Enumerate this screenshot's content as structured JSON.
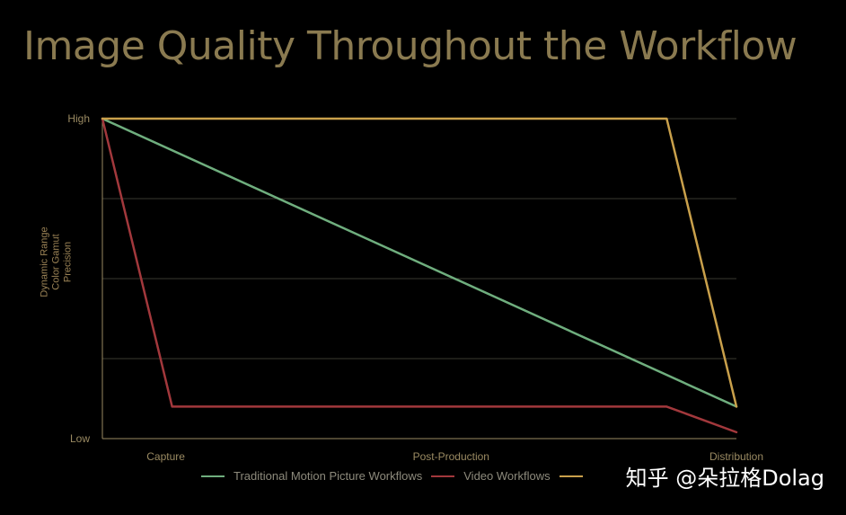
{
  "title": "Image Quality Throughout the Workflow",
  "ylabel_lines": [
    "Dynamic Range",
    "Color Gamut",
    "Precision"
  ],
  "chart_data": {
    "type": "line",
    "title": "Image Quality Throughout the Workflow",
    "ylabel": "Dynamic Range / Color Gamut / Precision",
    "xlabel": "",
    "x_tick_labels": [
      "Capture",
      "Post-Production",
      "Distribution"
    ],
    "y_tick_labels": [
      "High",
      "Low"
    ],
    "grid": "horizontal",
    "xlim": [
      0,
      1
    ],
    "ylim": [
      0,
      1
    ],
    "series": [
      {
        "name": "Traditional Motion Picture Workflows",
        "color": "#6fae7e",
        "points": [
          [
            0,
            1
          ],
          [
            1,
            0.1
          ]
        ]
      },
      {
        "name": "Video Workflows",
        "color": "#a2383c",
        "points": [
          [
            0,
            1
          ],
          [
            0.11,
            0.1
          ],
          [
            0.89,
            0.1
          ],
          [
            1,
            0.02
          ]
        ]
      },
      {
        "name": "",
        "color": "#c9a04b",
        "points": [
          [
            0,
            1
          ],
          [
            0.89,
            1
          ],
          [
            1,
            0.1
          ]
        ]
      }
    ]
  },
  "legend": [
    {
      "label": "Traditional Motion Picture Workflows",
      "color": "#6fae7e"
    },
    {
      "label": "Video Workflows",
      "color": "#a2383c"
    },
    {
      "label": "",
      "color": "#c9a04b"
    }
  ],
  "watermark": "知乎 @朵拉格Dolag",
  "colors": {
    "background": "#000000",
    "title": "#8a7a50",
    "axis": "#9a8a62",
    "grid": "#3a3a30"
  }
}
